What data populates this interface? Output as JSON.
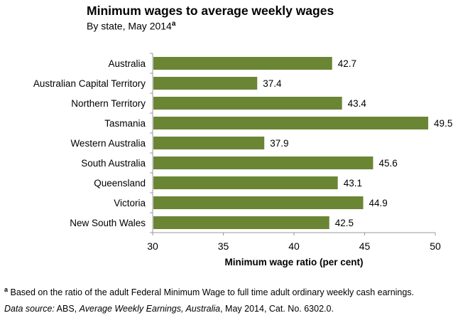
{
  "chart_data": {
    "type": "bar",
    "orientation": "horizontal",
    "title": "Minimum wages to average weekly wages",
    "subtitle": "By state, May 2014",
    "subtitle_note_marker": "a",
    "categories": [
      "Australia",
      "Australian Capital Territory",
      "Northern Territory",
      "Tasmania",
      "Western Australia",
      "South Australia",
      "Queensland",
      "Victoria",
      "New South Wales"
    ],
    "values": [
      42.7,
      37.4,
      43.4,
      49.5,
      37.9,
      45.6,
      43.1,
      44.9,
      42.5
    ],
    "data_labels": [
      "42.7",
      "37.4",
      "43.4",
      "49.5",
      "37.9",
      "45.6",
      "43.1",
      "44.9",
      "42.5"
    ],
    "xlabel": "Minimum wage ratio (per cent)",
    "ylabel": "",
    "xlim": [
      30,
      50
    ],
    "xticks": [
      "30",
      "35",
      "40",
      "45",
      "50"
    ],
    "grid": false,
    "bar_color": "#6a8635"
  },
  "footnote": {
    "marker": "a",
    "text": " Based on the ratio of the adult Federal Minimum Wage to full time adult ordinary weekly cash earnings."
  },
  "source": {
    "label": "Data source:",
    "pre": " ABS, ",
    "title": "Average Weekly Earnings, Australia",
    "post": ", May 2014, Cat. No. 6302.0."
  }
}
